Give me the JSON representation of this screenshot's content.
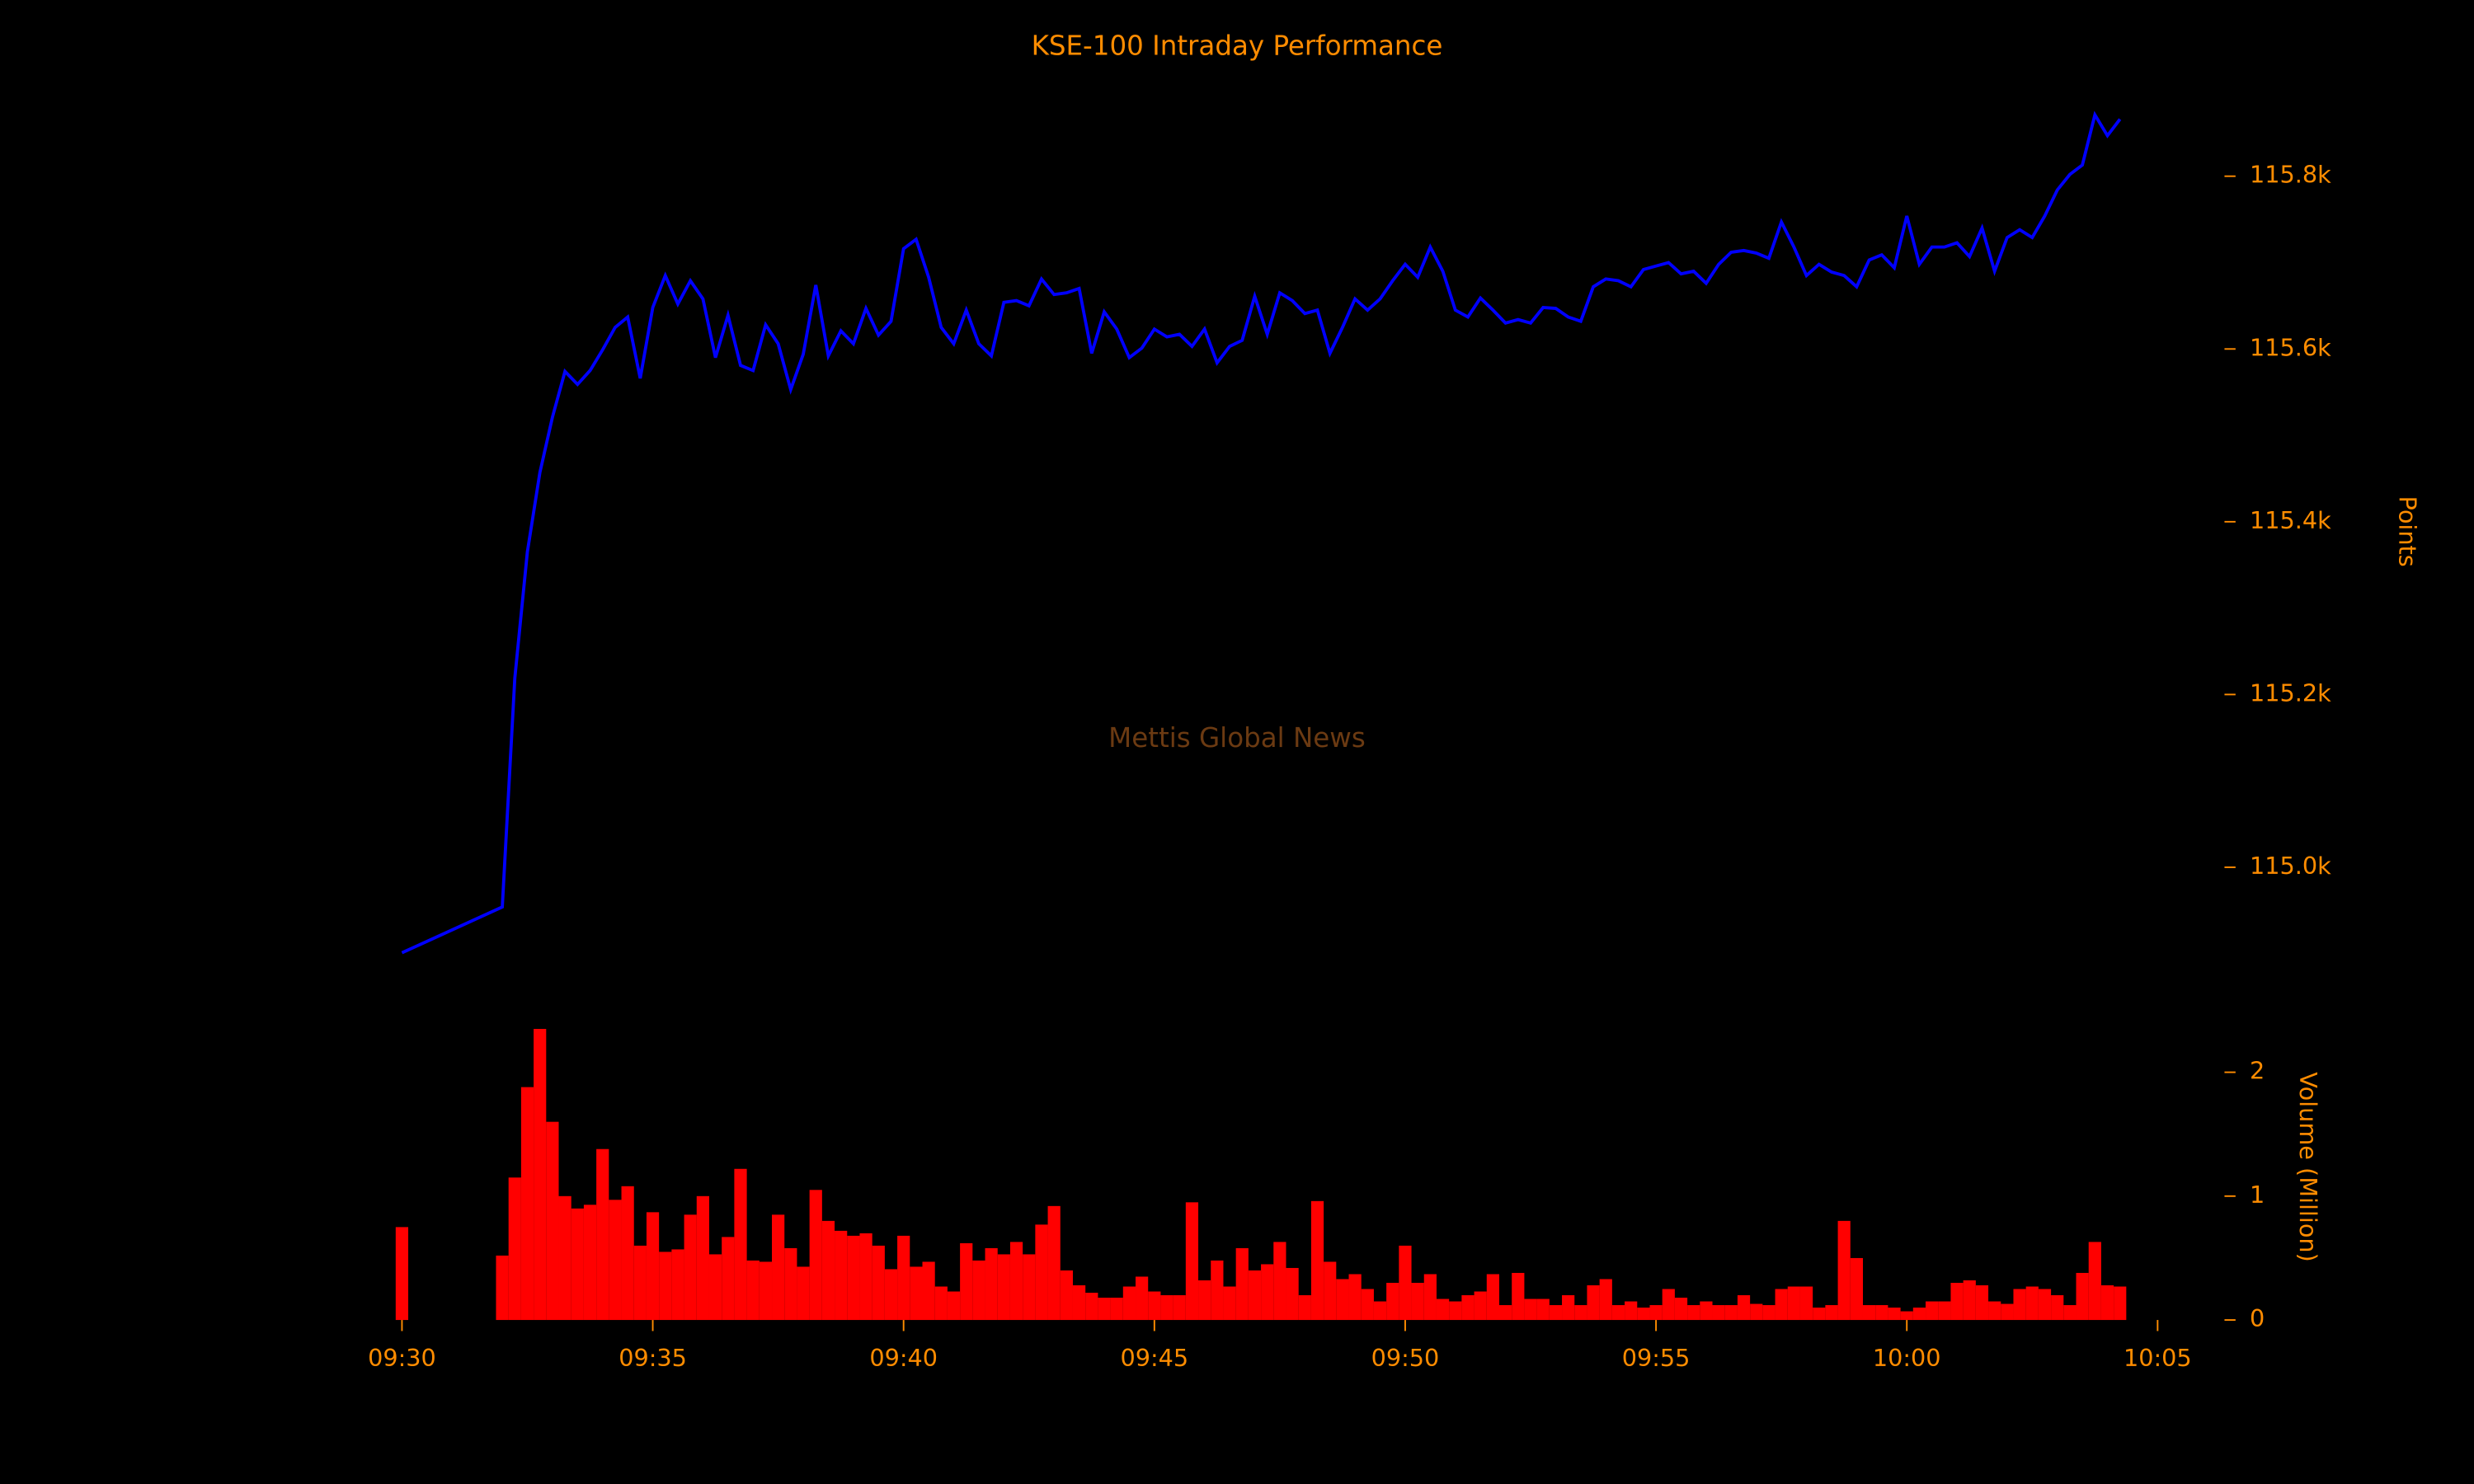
{
  "chart_data": [
    {
      "type": "line",
      "title": "KSE-100 Intraday Performance",
      "ylabel": "Points",
      "annotation": "Mettis Global News",
      "color": "#0000ff",
      "xlim": [
        "09:28:15",
        "10:06:20"
      ],
      "ylim": [
        114852,
        115920
      ],
      "yticks": [
        {
          "value": 115000,
          "label": "115.0k"
        },
        {
          "value": 115200,
          "label": "115.2k"
        },
        {
          "value": 115400,
          "label": "115.4k"
        },
        {
          "value": 115600,
          "label": "115.6k"
        },
        {
          "value": 115800,
          "label": "115.8k"
        }
      ],
      "x": [
        "09:30:00",
        "09:32:00",
        "09:32:15",
        "09:32:30",
        "09:32:45",
        "09:33:00",
        "09:33:15",
        "09:33:30",
        "09:33:45",
        "09:34:00",
        "09:34:15",
        "09:34:30",
        "09:34:45",
        "09:35:00",
        "09:35:15",
        "09:35:30",
        "09:35:45",
        "09:36:00",
        "09:36:15",
        "09:36:30",
        "09:36:45",
        "09:37:00",
        "09:37:15",
        "09:37:30",
        "09:37:45",
        "09:38:00",
        "09:38:15",
        "09:38:30",
        "09:38:45",
        "09:39:00",
        "09:39:15",
        "09:39:30",
        "09:39:45",
        "09:40:00",
        "09:40:15",
        "09:40:30",
        "09:40:45",
        "09:41:00",
        "09:41:15",
        "09:41:30",
        "09:41:45",
        "09:42:00",
        "09:42:15",
        "09:42:30",
        "09:42:45",
        "09:43:00",
        "09:43:15",
        "09:43:30",
        "09:43:45",
        "09:44:00",
        "09:44:15",
        "09:44:30",
        "09:44:45",
        "09:45:00",
        "09:45:15",
        "09:45:30",
        "09:45:45",
        "09:46:00",
        "09:46:15",
        "09:46:30",
        "09:46:45",
        "09:47:00",
        "09:47:15",
        "09:47:30",
        "09:47:45",
        "09:48:00",
        "09:48:15",
        "09:48:30",
        "09:48:45",
        "09:49:00",
        "09:49:15",
        "09:49:30",
        "09:49:45",
        "09:50:00",
        "09:50:15",
        "09:50:30",
        "09:50:45",
        "09:51:00",
        "09:51:15",
        "09:51:30",
        "09:51:45",
        "09:52:00",
        "09:52:15",
        "09:52:30",
        "09:52:45",
        "09:53:00",
        "09:53:15",
        "09:53:30",
        "09:53:45",
        "09:54:00",
        "09:54:15",
        "09:54:30",
        "09:54:45",
        "09:55:00",
        "09:55:15",
        "09:55:30",
        "09:55:45",
        "09:56:00",
        "09:56:15",
        "09:56:30",
        "09:56:45",
        "09:57:00",
        "09:57:15",
        "09:57:30",
        "09:57:45",
        "09:58:00",
        "09:58:15",
        "09:58:30",
        "09:58:45",
        "09:59:00",
        "09:59:15",
        "09:59:30",
        "09:59:45",
        "10:00:00",
        "10:00:15",
        "10:00:30",
        "10:00:45",
        "10:01:00",
        "10:01:15",
        "10:01:30",
        "10:01:45",
        "10:02:00",
        "10:02:15",
        "10:02:30",
        "10:02:45",
        "10:03:00",
        "10:03:15",
        "10:03:30",
        "10:03:45",
        "10:04:00",
        "10:04:15"
      ],
      "values": [
        114901,
        114954,
        115219,
        115365,
        115457,
        115521,
        115574,
        115559,
        115575,
        115599,
        115625,
        115637,
        115566,
        115648,
        115685,
        115652,
        115679,
        115658,
        115590,
        115639,
        115581,
        115575,
        115628,
        115606,
        115553,
        115594,
        115674,
        115592,
        115621,
        115606,
        115647,
        115616,
        115632,
        115716,
        115727,
        115683,
        115625,
        115606,
        115645,
        115606,
        115592,
        115654,
        115656,
        115650,
        115681,
        115663,
        115665,
        115670,
        115595,
        115643,
        115623,
        115590,
        115601,
        115623,
        115614,
        115617,
        115603,
        115623,
        115584,
        115603,
        115610,
        115661,
        115617,
        115665,
        115656,
        115641,
        115645,
        115595,
        115625,
        115658,
        115645,
        115658,
        115679,
        115698,
        115683,
        115718,
        115690,
        115645,
        115637,
        115659,
        115645,
        115630,
        115634,
        115630,
        115648,
        115647,
        115637,
        115632,
        115672,
        115681,
        115679,
        115672,
        115692,
        115696,
        115700,
        115687,
        115690,
        115676,
        115698,
        115712,
        115714,
        115711,
        115705,
        115747,
        115718,
        115685,
        115698,
        115689,
        115685,
        115672,
        115703,
        115709,
        115694,
        115754,
        115698,
        115718,
        115718,
        115723,
        115707,
        115740,
        115690,
        115729,
        115738,
        115729,
        115754,
        115784,
        115802,
        115813,
        115871,
        115847,
        115866
      ]
    },
    {
      "type": "bar",
      "ylabel": "Volume (Million)",
      "color": "#ff0000",
      "xlim": [
        "09:28:15",
        "10:06:20"
      ],
      "ylim": [
        0,
        2.47
      ],
      "yticks": [
        0,
        1,
        2
      ],
      "xticks": [
        "09:30",
        "09:35",
        "09:40",
        "09:45",
        "09:50",
        "09:55",
        "10:00",
        "10:05"
      ],
      "x": [
        "09:30:00",
        "09:32:00",
        "09:32:15",
        "09:32:30",
        "09:32:45",
        "09:33:00",
        "09:33:15",
        "09:33:30",
        "09:33:45",
        "09:34:00",
        "09:34:15",
        "09:34:30",
        "09:34:45",
        "09:35:00",
        "09:35:15",
        "09:35:30",
        "09:35:45",
        "09:36:00",
        "09:36:15",
        "09:36:30",
        "09:36:45",
        "09:37:00",
        "09:37:15",
        "09:37:30",
        "09:37:45",
        "09:38:00",
        "09:38:15",
        "09:38:30",
        "09:38:45",
        "09:39:00",
        "09:39:15",
        "09:39:30",
        "09:39:45",
        "09:40:00",
        "09:40:15",
        "09:40:30",
        "09:40:45",
        "09:41:00",
        "09:41:15",
        "09:41:30",
        "09:41:45",
        "09:42:00",
        "09:42:15",
        "09:42:30",
        "09:42:45",
        "09:43:00",
        "09:43:15",
        "09:43:30",
        "09:43:45",
        "09:44:00",
        "09:44:15",
        "09:44:30",
        "09:44:45",
        "09:45:00",
        "09:45:15",
        "09:45:30",
        "09:45:45",
        "09:46:00",
        "09:46:15",
        "09:46:30",
        "09:46:45",
        "09:47:00",
        "09:47:15",
        "09:47:30",
        "09:47:45",
        "09:48:00",
        "09:48:15",
        "09:48:30",
        "09:48:45",
        "09:49:00",
        "09:49:15",
        "09:49:30",
        "09:49:45",
        "09:50:00",
        "09:50:15",
        "09:50:30",
        "09:50:45",
        "09:51:00",
        "09:51:15",
        "09:51:30",
        "09:51:45",
        "09:52:00",
        "09:52:15",
        "09:52:30",
        "09:52:45",
        "09:53:00",
        "09:53:15",
        "09:53:30",
        "09:53:45",
        "09:54:00",
        "09:54:15",
        "09:54:30",
        "09:54:45",
        "09:55:00",
        "09:55:15",
        "09:55:30",
        "09:55:45",
        "09:56:00",
        "09:56:15",
        "09:56:30",
        "09:56:45",
        "09:57:00",
        "09:57:15",
        "09:57:30",
        "09:57:45",
        "09:58:00",
        "09:58:15",
        "09:58:30",
        "09:58:45",
        "09:59:00",
        "09:59:15",
        "09:59:30",
        "09:59:45",
        "10:00:00",
        "10:00:15",
        "10:00:30",
        "10:00:45",
        "10:01:00",
        "10:01:15",
        "10:01:30",
        "10:01:45",
        "10:02:00",
        "10:02:15",
        "10:02:30",
        "10:02:45",
        "10:03:00",
        "10:03:15",
        "10:03:30",
        "10:03:45",
        "10:04:00",
        "10:04:15"
      ],
      "values": [
        0.75,
        0.52,
        1.15,
        1.88,
        2.35,
        1.6,
        1.0,
        0.9,
        0.93,
        1.38,
        0.97,
        1.08,
        0.6,
        0.87,
        0.55,
        0.57,
        0.85,
        1.0,
        0.53,
        0.67,
        1.22,
        0.48,
        0.47,
        0.85,
        0.58,
        0.43,
        1.05,
        0.8,
        0.72,
        0.68,
        0.7,
        0.6,
        0.41,
        0.68,
        0.43,
        0.47,
        0.27,
        0.23,
        0.62,
        0.48,
        0.58,
        0.53,
        0.63,
        0.53,
        0.77,
        0.92,
        0.4,
        0.28,
        0.22,
        0.18,
        0.18,
        0.27,
        0.35,
        0.23,
        0.2,
        0.2,
        0.95,
        0.32,
        0.48,
        0.27,
        0.58,
        0.4,
        0.45,
        0.63,
        0.42,
        0.2,
        0.96,
        0.47,
        0.33,
        0.37,
        0.25,
        0.15,
        0.3,
        0.6,
        0.3,
        0.37,
        0.17,
        0.15,
        0.2,
        0.23,
        0.37,
        0.12,
        0.38,
        0.17,
        0.17,
        0.12,
        0.2,
        0.12,
        0.28,
        0.33,
        0.12,
        0.15,
        0.1,
        0.12,
        0.25,
        0.18,
        0.12,
        0.15,
        0.12,
        0.12,
        0.2,
        0.13,
        0.12,
        0.25,
        0.27,
        0.27,
        0.1,
        0.12,
        0.8,
        0.5,
        0.12,
        0.12,
        0.1,
        0.07,
        0.1,
        0.15,
        0.15,
        0.3,
        0.32,
        0.28,
        0.15,
        0.13,
        0.25,
        0.27,
        0.25,
        0.2,
        0.12,
        0.38,
        0.63,
        0.28,
        0.27
      ]
    }
  ]
}
